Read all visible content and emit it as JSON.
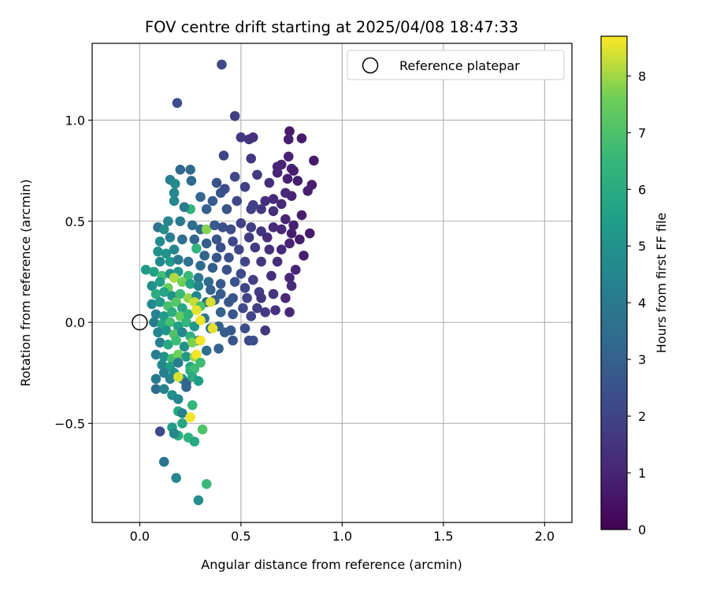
{
  "chart_data": {
    "type": "scatter",
    "title": "FOV centre drift starting at 2025/04/08 18:47:33",
    "xlabel": "Angular distance from reference (arcmin)",
    "ylabel": "Rotation from reference (arcmin)",
    "xlim": [
      -0.235,
      2.135
    ],
    "ylim": [
      -0.99,
      1.38
    ],
    "xticks": [
      0.0,
      0.5,
      1.0,
      1.5,
      2.0
    ],
    "xtick_labels": [
      "0.0",
      "0.5",
      "1.0",
      "1.5",
      "2.0"
    ],
    "yticks": [
      -0.5,
      0.0,
      0.5,
      1.0
    ],
    "ytick_labels": [
      "−0.5",
      "0.0",
      "0.5",
      "1.0"
    ],
    "grid": true,
    "legend": {
      "placement": "top-right",
      "entries": [
        "Reference platepar"
      ]
    },
    "reference_point": {
      "x": 0.0,
      "y": 0.0,
      "label": "Reference platepar"
    },
    "colorbar": {
      "label": "Hours from first FF file",
      "colormap": "viridis",
      "range": [
        0,
        8.7
      ],
      "ticks": [
        0,
        1,
        2,
        3,
        4,
        5,
        6,
        7,
        8
      ],
      "tick_labels": [
        "0",
        "1",
        "2",
        "3",
        "4",
        "5",
        "6",
        "7",
        "8"
      ]
    },
    "point_fields": [
      "x",
      "y",
      "hours"
    ],
    "points": [
      [
        0.405,
        1.275,
        2.2
      ],
      [
        0.185,
        1.085,
        2.4
      ],
      [
        0.47,
        1.02,
        1.8
      ],
      [
        0.74,
        0.945,
        0.7
      ],
      [
        0.5,
        0.915,
        1.6
      ],
      [
        0.735,
        0.905,
        0.8
      ],
      [
        0.8,
        0.91,
        0.7
      ],
      [
        0.54,
        0.905,
        1.5
      ],
      [
        0.56,
        0.915,
        1.4
      ],
      [
        0.415,
        0.825,
        2.0
      ],
      [
        0.55,
        0.81,
        1.6
      ],
      [
        0.735,
        0.82,
        0.9
      ],
      [
        0.7,
        0.78,
        1.0
      ],
      [
        0.86,
        0.8,
        0.7
      ],
      [
        0.68,
        0.77,
        1.0
      ],
      [
        0.2,
        0.755,
        3.3
      ],
      [
        0.25,
        0.755,
        3.4
      ],
      [
        0.47,
        0.72,
        2.1
      ],
      [
        0.58,
        0.73,
        1.7
      ],
      [
        0.68,
        0.74,
        1.0
      ],
      [
        0.75,
        0.76,
        1.0
      ],
      [
        0.78,
        0.7,
        0.8
      ],
      [
        0.73,
        0.71,
        0.9
      ],
      [
        0.76,
        0.75,
        0.8
      ],
      [
        0.15,
        0.705,
        4.3
      ],
      [
        0.255,
        0.7,
        3.4
      ],
      [
        0.38,
        0.69,
        2.5
      ],
      [
        0.64,
        0.69,
        1.3
      ],
      [
        0.85,
        0.68,
        0.8
      ],
      [
        0.175,
        0.685,
        4.7
      ],
      [
        0.4,
        0.64,
        2.6
      ],
      [
        0.42,
        0.66,
        2.3
      ],
      [
        0.52,
        0.67,
        1.9
      ],
      [
        0.62,
        0.6,
        1.3
      ],
      [
        0.66,
        0.61,
        1.2
      ],
      [
        0.72,
        0.64,
        1.1
      ],
      [
        0.75,
        0.625,
        1.0
      ],
      [
        0.83,
        0.65,
        0.8
      ],
      [
        0.17,
        0.64,
        4.5
      ],
      [
        0.3,
        0.62,
        3.2
      ],
      [
        0.36,
        0.6,
        2.8
      ],
      [
        0.48,
        0.6,
        2.1
      ],
      [
        0.56,
        0.58,
        1.8
      ],
      [
        0.7,
        0.585,
        1.1
      ],
      [
        0.25,
        0.56,
        6.4
      ],
      [
        0.22,
        0.57,
        4.0
      ],
      [
        0.17,
        0.6,
        4.6
      ],
      [
        0.33,
        0.56,
        3.0
      ],
      [
        0.43,
        0.56,
        2.6
      ],
      [
        0.55,
        0.56,
        1.9
      ],
      [
        0.6,
        0.56,
        1.6
      ],
      [
        0.66,
        0.55,
        1.3
      ],
      [
        0.8,
        0.53,
        0.8
      ],
      [
        0.72,
        0.51,
        1.0
      ],
      [
        0.76,
        0.48,
        0.9
      ],
      [
        0.75,
        0.44,
        0.8
      ],
      [
        0.84,
        0.44,
        0.7
      ],
      [
        0.79,
        0.41,
        0.8
      ],
      [
        0.09,
        0.47,
        3.6
      ],
      [
        0.12,
        0.46,
        4.8
      ],
      [
        0.14,
        0.5,
        4.5
      ],
      [
        0.2,
        0.5,
        4.0
      ],
      [
        0.26,
        0.48,
        3.5
      ],
      [
        0.3,
        0.46,
        3.3
      ],
      [
        0.33,
        0.46,
        7.8
      ],
      [
        0.37,
        0.48,
        2.8
      ],
      [
        0.41,
        0.47,
        2.4
      ],
      [
        0.45,
        0.46,
        2.2
      ],
      [
        0.5,
        0.49,
        1.9
      ],
      [
        0.55,
        0.47,
        1.8
      ],
      [
        0.6,
        0.45,
        1.5
      ],
      [
        0.66,
        0.47,
        1.2
      ],
      [
        0.7,
        0.46,
        1.1
      ],
      [
        0.63,
        0.42,
        1.3
      ],
      [
        0.54,
        0.42,
        1.7
      ],
      [
        0.46,
        0.4,
        2.1
      ],
      [
        0.38,
        0.41,
        2.6
      ],
      [
        0.1,
        0.4,
        4.7
      ],
      [
        0.15,
        0.42,
        4.2
      ],
      [
        0.21,
        0.41,
        3.6
      ],
      [
        0.27,
        0.41,
        3.2
      ],
      [
        0.33,
        0.39,
        2.9
      ],
      [
        0.4,
        0.37,
        2.4
      ],
      [
        0.49,
        0.36,
        2.0
      ],
      [
        0.57,
        0.37,
        1.7
      ],
      [
        0.64,
        0.36,
        1.3
      ],
      [
        0.7,
        0.36,
        1.2
      ],
      [
        0.74,
        0.39,
        1.0
      ],
      [
        0.81,
        0.33,
        0.8
      ],
      [
        0.09,
        0.35,
        4.9
      ],
      [
        0.13,
        0.34,
        5.0
      ],
      [
        0.17,
        0.36,
        4.5
      ],
      [
        0.28,
        0.365,
        6.3
      ],
      [
        0.32,
        0.33,
        3.1
      ],
      [
        0.38,
        0.32,
        2.7
      ],
      [
        0.44,
        0.32,
        2.4
      ],
      [
        0.52,
        0.3,
        2.0
      ],
      [
        0.6,
        0.3,
        1.6
      ],
      [
        0.68,
        0.3,
        1.3
      ],
      [
        0.77,
        0.26,
        1.0
      ],
      [
        0.1,
        0.3,
        4.6
      ],
      [
        0.15,
        0.3,
        5.2
      ],
      [
        0.19,
        0.31,
        4.0
      ],
      [
        0.24,
        0.3,
        3.7
      ],
      [
        0.3,
        0.28,
        3.4
      ],
      [
        0.36,
        0.27,
        2.9
      ],
      [
        0.43,
        0.26,
        2.5
      ],
      [
        0.5,
        0.24,
        2.2
      ],
      [
        0.56,
        0.21,
        1.8
      ],
      [
        0.65,
        0.23,
        1.3
      ],
      [
        0.74,
        0.22,
        1.1
      ],
      [
        0.03,
        0.26,
        5.4
      ],
      [
        0.07,
        0.25,
        5.6
      ],
      [
        0.11,
        0.23,
        6.8
      ],
      [
        0.15,
        0.24,
        4.9
      ],
      [
        0.19,
        0.25,
        5.2
      ],
      [
        0.24,
        0.23,
        6.6
      ],
      [
        0.29,
        0.22,
        3.9
      ],
      [
        0.34,
        0.2,
        3.4
      ],
      [
        0.4,
        0.19,
        2.8
      ],
      [
        0.47,
        0.2,
        2.6
      ],
      [
        0.52,
        0.17,
        2.1
      ],
      [
        0.59,
        0.15,
        1.8
      ],
      [
        0.66,
        0.14,
        1.5
      ],
      [
        0.75,
        0.18,
        1.1
      ],
      [
        0.06,
        0.18,
        4.8
      ],
      [
        0.1,
        0.2,
        5.5
      ],
      [
        0.14,
        0.17,
        7.5
      ],
      [
        0.17,
        0.22,
        8.1
      ],
      [
        0.21,
        0.2,
        7.6
      ],
      [
        0.25,
        0.19,
        5.7
      ],
      [
        0.29,
        0.18,
        4.4
      ],
      [
        0.35,
        0.16,
        3.1
      ],
      [
        0.4,
        0.14,
        2.8
      ],
      [
        0.46,
        0.12,
        2.6
      ],
      [
        0.53,
        0.12,
        2.0
      ],
      [
        0.6,
        0.12,
        1.6
      ],
      [
        0.72,
        0.12,
        1.1
      ],
      [
        0.08,
        0.14,
        6.1
      ],
      [
        0.12,
        0.15,
        5.8
      ],
      [
        0.16,
        0.13,
        5.0
      ],
      [
        0.2,
        0.14,
        6.6
      ],
      [
        0.24,
        0.12,
        7.9
      ],
      [
        0.28,
        0.13,
        4.5
      ],
      [
        0.33,
        0.1,
        3.5
      ],
      [
        0.37,
        0.11,
        2.9
      ],
      [
        0.44,
        0.1,
        2.7
      ],
      [
        0.51,
        0.07,
        2.2
      ],
      [
        0.58,
        0.07,
        1.8
      ],
      [
        0.67,
        0.06,
        1.4
      ],
      [
        0.74,
        0.05,
        1.1
      ],
      [
        0.06,
        0.09,
        4.6
      ],
      [
        0.1,
        0.1,
        5.2
      ],
      [
        0.14,
        0.08,
        6.9
      ],
      [
        0.18,
        0.1,
        7.2
      ],
      [
        0.21,
        0.07,
        5.8
      ],
      [
        0.27,
        0.1,
        8.3
      ],
      [
        0.3,
        0.08,
        7.0
      ],
      [
        0.35,
        0.1,
        8.4
      ],
      [
        0.4,
        0.05,
        3.1
      ],
      [
        0.46,
        0.04,
        2.6
      ],
      [
        0.55,
        0.03,
        2.1
      ],
      [
        0.62,
        0.05,
        1.7
      ],
      [
        0.08,
        0.04,
        4.4
      ],
      [
        0.12,
        0.03,
        5.4
      ],
      [
        0.16,
        0.05,
        6.1
      ],
      [
        0.2,
        0.03,
        7.4
      ],
      [
        0.24,
        0.04,
        6.3
      ],
      [
        0.28,
        0.06,
        8.5
      ],
      [
        0.32,
        0.02,
        3.8
      ],
      [
        0.39,
        -0.02,
        3.0
      ],
      [
        0.45,
        -0.04,
        2.7
      ],
      [
        0.52,
        -0.03,
        2.3
      ],
      [
        0.62,
        -0.04,
        1.6
      ],
      [
        0.07,
        0.0,
        4.1
      ],
      [
        0.11,
        -0.01,
        5.8
      ],
      [
        0.15,
        0.0,
        6.8
      ],
      [
        0.19,
        -0.02,
        5.6
      ],
      [
        0.23,
        0.0,
        6.4
      ],
      [
        0.27,
        -0.02,
        5.2
      ],
      [
        0.3,
        0.01,
        8.6
      ],
      [
        0.35,
        -0.03,
        3.4
      ],
      [
        0.42,
        -0.05,
        2.9
      ],
      [
        0.09,
        -0.05,
        4.5
      ],
      [
        0.13,
        -0.04,
        5.1
      ],
      [
        0.17,
        -0.06,
        7.1
      ],
      [
        0.21,
        -0.05,
        4.6
      ],
      [
        0.25,
        -0.07,
        6.2
      ],
      [
        0.29,
        -0.09,
        4.3
      ],
      [
        0.36,
        -0.03,
        8.5
      ],
      [
        0.46,
        -0.09,
        2.6
      ],
      [
        0.54,
        -0.09,
        2.2
      ],
      [
        0.56,
        -0.09,
        2.3
      ],
      [
        0.1,
        -0.1,
        4.3
      ],
      [
        0.14,
        -0.11,
        5.9
      ],
      [
        0.18,
        -0.09,
        6.7
      ],
      [
        0.22,
        -0.12,
        4.9
      ],
      [
        0.26,
        -0.1,
        7.7
      ],
      [
        0.3,
        -0.09,
        8.6
      ],
      [
        0.39,
        -0.13,
        3.0
      ],
      [
        0.08,
        -0.16,
        4.1
      ],
      [
        0.12,
        -0.17,
        5.0
      ],
      [
        0.16,
        -0.18,
        6.8
      ],
      [
        0.19,
        -0.16,
        7.6
      ],
      [
        0.23,
        -0.17,
        5.2
      ],
      [
        0.27,
        -0.17,
        7.9
      ],
      [
        0.28,
        -0.16,
        8.6
      ],
      [
        0.33,
        -0.14,
        3.6
      ],
      [
        0.11,
        -0.21,
        4.6
      ],
      [
        0.15,
        -0.22,
        5.5
      ],
      [
        0.19,
        -0.2,
        4.1
      ],
      [
        0.25,
        -0.22,
        5.8
      ],
      [
        0.3,
        -0.2,
        6.7
      ],
      [
        0.12,
        -0.25,
        4.2
      ],
      [
        0.17,
        -0.25,
        4.8
      ],
      [
        0.21,
        -0.28,
        5.0
      ],
      [
        0.25,
        -0.24,
        6.1
      ],
      [
        0.27,
        -0.23,
        6.7
      ],
      [
        0.08,
        -0.28,
        4.0
      ],
      [
        0.15,
        -0.28,
        4.4
      ],
      [
        0.19,
        -0.27,
        8.4
      ],
      [
        0.23,
        -0.3,
        3.1
      ],
      [
        0.26,
        -0.27,
        6.0
      ],
      [
        0.29,
        -0.29,
        5.4
      ],
      [
        0.08,
        -0.33,
        3.5
      ],
      [
        0.12,
        -0.33,
        4.4
      ],
      [
        0.16,
        -0.36,
        4.8
      ],
      [
        0.19,
        -0.38,
        4.6
      ],
      [
        0.23,
        -0.32,
        3.2
      ],
      [
        0.26,
        -0.41,
        6.5
      ],
      [
        0.19,
        -0.44,
        5.9
      ],
      [
        0.21,
        -0.45,
        4.4
      ],
      [
        0.25,
        -0.47,
        8.6
      ],
      [
        0.16,
        -0.52,
        5.4
      ],
      [
        0.19,
        -0.56,
        6.1
      ],
      [
        0.21,
        -0.5,
        5.8
      ],
      [
        0.1,
        -0.54,
        2.2
      ],
      [
        0.17,
        -0.55,
        4.5
      ],
      [
        0.24,
        -0.57,
        6.3
      ],
      [
        0.27,
        -0.59,
        5.9
      ],
      [
        0.31,
        -0.53,
        7.0
      ],
      [
        0.12,
        -0.69,
        3.8
      ],
      [
        0.18,
        -0.77,
        4.5
      ],
      [
        0.33,
        -0.8,
        6.6
      ],
      [
        0.29,
        -0.88,
        4.8
      ]
    ]
  }
}
